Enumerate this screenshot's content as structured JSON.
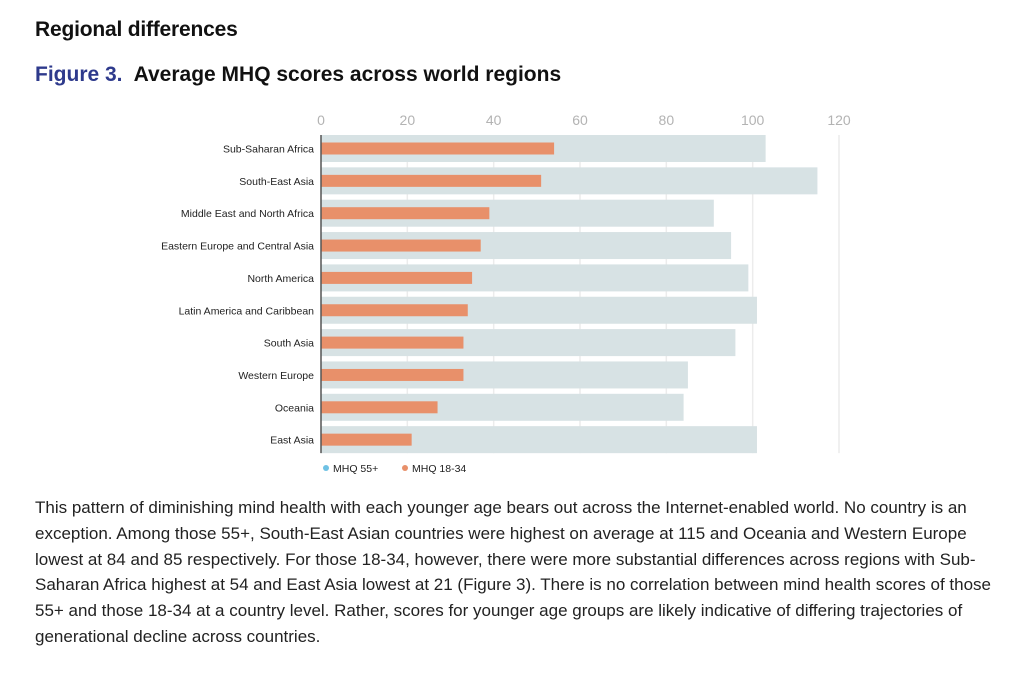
{
  "section_title": "Regional differences",
  "figure": {
    "label": "Figure 3.",
    "title": "Average MHQ scores across world regions"
  },
  "chart_data": {
    "type": "bar",
    "orientation": "horizontal",
    "title": "Average MHQ scores across world regions",
    "xlabel": "",
    "ylabel": "",
    "xlim": [
      0,
      120
    ],
    "xticks": [
      0,
      20,
      40,
      60,
      80,
      100,
      120
    ],
    "grid": true,
    "legend_position": "bottom-left",
    "categories": [
      "Sub-Saharan Africa",
      "South-East Asia",
      "Middle East and North Africa",
      "Eastern Europe and Central Asia",
      "North America",
      "Latin America and Caribbean",
      "South Asia",
      "Western Europe",
      "Oceania",
      "East Asia"
    ],
    "series": [
      {
        "name": "MHQ 55+",
        "color": "#d7e2e4",
        "legend_color": "#6ec1e4",
        "values": [
          103,
          115,
          91,
          95,
          99,
          101,
          96,
          85,
          84,
          101
        ]
      },
      {
        "name": "MHQ 18-34",
        "color": "#e8906a",
        "legend_color": "#e8906a",
        "values": [
          54,
          51,
          39,
          37,
          35,
          34,
          33,
          33,
          27,
          21
        ]
      }
    ]
  },
  "paragraph": "This pattern of diminishing mind health with each younger age bears out across the Internet-enabled world. No country is an exception. Among those 55+, South-East Asian countries were highest on average at 115 and Oceania and Western Europe lowest at 84 and 85 respectively. For those 18-34, however, there were more substantial differences across regions with Sub-Saharan Africa highest at 54 and East Asia lowest at 21 (Figure 3). There is no correlation between mind health scores of those 55+ and those 18-34 at a country level. Rather, scores for younger age groups are likely indicative of differing trajectories of generational decline across countries."
}
